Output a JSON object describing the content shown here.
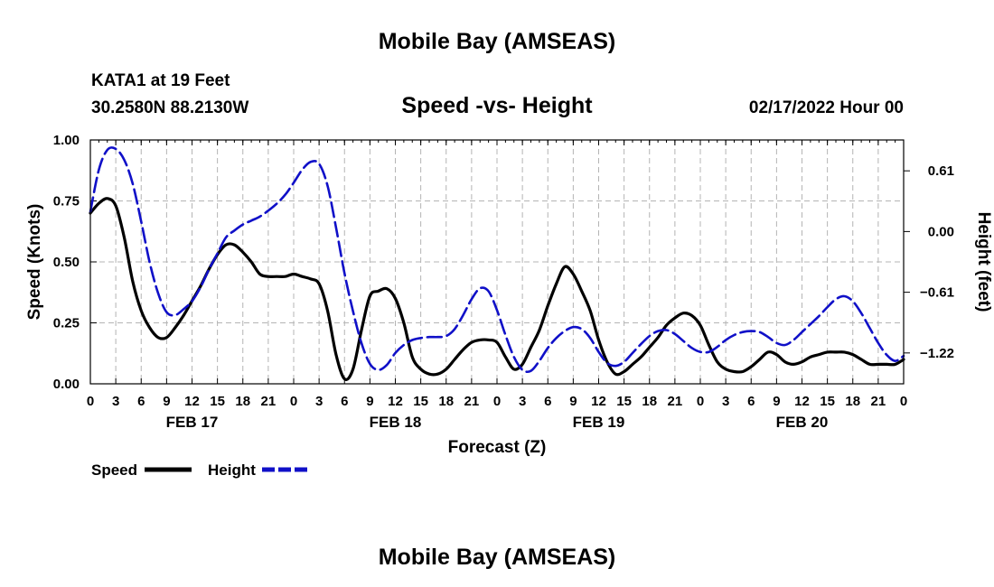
{
  "title": "Mobile Bay (AMSEAS)",
  "station": "KATA1 at 19 Feet",
  "coords": "30.2580N  88.2130W",
  "subtitle": "Speed -vs- Height",
  "run_time": "02/17/2022 Hour 00",
  "footer_title": "Mobile Bay (AMSEAS)",
  "colors": {
    "speed": "#000000",
    "height": "#1010c8",
    "grid": "#b4b4b4"
  },
  "chart_data": {
    "type": "line",
    "xlabel": "Forecast (Z)",
    "ylabel": "Speed (Knots)",
    "y2label": "Height (feet)",
    "xlim": [
      0,
      96
    ],
    "ylim": [
      0,
      1
    ],
    "y2lim": [
      -1.53,
      0.92
    ],
    "x_ticks": [
      0,
      3,
      6,
      9,
      12,
      15,
      18,
      21,
      24,
      27,
      30,
      33,
      36,
      39,
      42,
      45,
      48,
      51,
      54,
      57,
      60,
      63,
      66,
      69,
      72,
      75,
      78,
      81,
      84,
      87,
      90,
      93,
      96
    ],
    "x_tick_labels": [
      "0",
      "3",
      "6",
      "9",
      "12",
      "15",
      "18",
      "21",
      "0",
      "3",
      "6",
      "9",
      "12",
      "15",
      "18",
      "21",
      "0",
      "3",
      "6",
      "9",
      "12",
      "15",
      "18",
      "21",
      "0",
      "3",
      "6",
      "9",
      "12",
      "15",
      "18",
      "21",
      "0"
    ],
    "date_labels": [
      {
        "label": "FEB 17",
        "x": 12
      },
      {
        "label": "FEB 18",
        "x": 36
      },
      {
        "label": "FEB 19",
        "x": 60
      },
      {
        "label": "FEB 20",
        "x": 84
      }
    ],
    "y_ticks": [
      0,
      0.25,
      0.5,
      0.75,
      1.0
    ],
    "y_tick_labels": [
      "0.00",
      "0.25",
      "0.50",
      "0.75",
      "1.00"
    ],
    "y2_ticks": [
      0.61,
      0.0,
      -0.61,
      -1.22
    ],
    "y2_tick_labels": [
      "0.61",
      "0.00",
      "−0.61",
      "−1.22"
    ],
    "series": [
      {
        "name": "Speed",
        "axis": "left",
        "style": "solid",
        "x": [
          0,
          1,
          2,
          3,
          4,
          5,
          6,
          7,
          8,
          9,
          10,
          11,
          12,
          13,
          14,
          15,
          16,
          17,
          18,
          19,
          20,
          21,
          22,
          23,
          24,
          25,
          26,
          27,
          28,
          29,
          30,
          31,
          32,
          33,
          34,
          35,
          36,
          37,
          38,
          39,
          40,
          41,
          42,
          43,
          44,
          45,
          46,
          47,
          48,
          49,
          50,
          51,
          52,
          53,
          54,
          55,
          56,
          57,
          58,
          59,
          60,
          61,
          62,
          63,
          64,
          65,
          66,
          67,
          68,
          69,
          70,
          71,
          72,
          73,
          74,
          75,
          76,
          77,
          78,
          79,
          80,
          81,
          82,
          83,
          84,
          85,
          86,
          87,
          88,
          89,
          90,
          91,
          92,
          93,
          94,
          95,
          96
        ],
        "values": [
          0.7,
          0.74,
          0.76,
          0.73,
          0.6,
          0.42,
          0.3,
          0.23,
          0.19,
          0.19,
          0.23,
          0.28,
          0.34,
          0.4,
          0.47,
          0.53,
          0.57,
          0.57,
          0.54,
          0.5,
          0.45,
          0.44,
          0.44,
          0.44,
          0.45,
          0.44,
          0.43,
          0.41,
          0.3,
          0.12,
          0.02,
          0.06,
          0.22,
          0.36,
          0.38,
          0.39,
          0.35,
          0.25,
          0.11,
          0.06,
          0.04,
          0.04,
          0.06,
          0.1,
          0.14,
          0.17,
          0.18,
          0.18,
          0.17,
          0.11,
          0.06,
          0.08,
          0.15,
          0.22,
          0.32,
          0.41,
          0.48,
          0.45,
          0.38,
          0.3,
          0.18,
          0.09,
          0.04,
          0.05,
          0.08,
          0.11,
          0.15,
          0.19,
          0.24,
          0.27,
          0.29,
          0.28,
          0.24,
          0.16,
          0.09,
          0.06,
          0.05,
          0.05,
          0.07,
          0.1,
          0.13,
          0.12,
          0.09,
          0.08,
          0.09,
          0.11,
          0.12,
          0.13,
          0.13,
          0.13,
          0.12,
          0.1,
          0.08,
          0.08,
          0.08,
          0.08,
          0.1
        ]
      },
      {
        "name": "Height",
        "axis": "right",
        "style": "dashed",
        "x": [
          0,
          1,
          2,
          3,
          4,
          5,
          6,
          7,
          8,
          9,
          10,
          11,
          12,
          13,
          14,
          15,
          16,
          17,
          18,
          19,
          20,
          21,
          22,
          23,
          24,
          25,
          26,
          27,
          28,
          29,
          30,
          31,
          32,
          33,
          34,
          35,
          36,
          37,
          38,
          39,
          40,
          41,
          42,
          43,
          44,
          45,
          46,
          47,
          48,
          49,
          50,
          51,
          52,
          53,
          54,
          55,
          56,
          57,
          58,
          59,
          60,
          61,
          62,
          63,
          64,
          65,
          66,
          67,
          68,
          69,
          70,
          71,
          72,
          73,
          74,
          75,
          76,
          77,
          78,
          79,
          80,
          81,
          82,
          83,
          84,
          85,
          86,
          87,
          88,
          89,
          90,
          91,
          92,
          93,
          94,
          95,
          96
        ],
        "values": [
          0.2,
          0.62,
          0.82,
          0.83,
          0.72,
          0.48,
          0.1,
          -0.31,
          -0.62,
          -0.81,
          -0.84,
          -0.78,
          -0.7,
          -0.56,
          -0.38,
          -0.22,
          -0.06,
          0.01,
          0.07,
          0.11,
          0.15,
          0.21,
          0.28,
          0.37,
          0.49,
          0.62,
          0.7,
          0.68,
          0.46,
          0.04,
          -0.42,
          -0.8,
          -1.12,
          -1.33,
          -1.39,
          -1.34,
          -1.22,
          -1.14,
          -1.09,
          -1.07,
          -1.06,
          -1.06,
          -1.05,
          -0.98,
          -0.84,
          -0.68,
          -0.57,
          -0.6,
          -0.79,
          -1.04,
          -1.26,
          -1.39,
          -1.4,
          -1.3,
          -1.17,
          -1.07,
          -1.0,
          -0.96,
          -0.98,
          -1.07,
          -1.21,
          -1.32,
          -1.35,
          -1.31,
          -1.22,
          -1.13,
          -1.05,
          -1.0,
          -0.99,
          -1.03,
          -1.1,
          -1.17,
          -1.21,
          -1.21,
          -1.16,
          -1.09,
          -1.04,
          -1.01,
          -1.0,
          -1.01,
          -1.06,
          -1.12,
          -1.14,
          -1.09,
          -1.01,
          -0.93,
          -0.85,
          -0.76,
          -0.68,
          -0.65,
          -0.7,
          -0.82,
          -0.97,
          -1.12,
          -1.24,
          -1.3,
          -1.25
        ]
      }
    ],
    "legend": [
      "Speed",
      "Height"
    ]
  }
}
